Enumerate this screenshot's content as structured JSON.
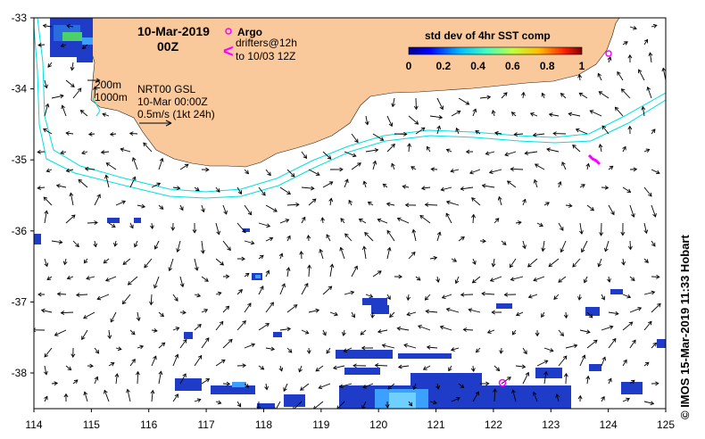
{
  "map": {
    "title_date": "10-Mar-2019",
    "title_time": "00Z",
    "legend_argo": "Argo",
    "legend_drifters_line1": "drifters@12h",
    "legend_drifters_line2": "to 10/03 12Z",
    "drifter_symbol": "<",
    "depth_label_1": "200m",
    "depth_label_2": "1000m",
    "product_line1": "NRT00 GSL",
    "product_line2": "10-Mar 00:00Z",
    "product_line3": "0.5m/s (1kt 24h)",
    "colorbar_title": "std dev of 4hr SST comp",
    "colorbar_ticks": [
      "0",
      "0.2",
      "0.4",
      "0.6",
      "0.8",
      "1"
    ],
    "credit": "© IMOS 15-Mar-2019 11:33 Hobart",
    "x_ticks": [
      "114",
      "115",
      "116",
      "117",
      "118",
      "119",
      "120",
      "121",
      "122",
      "123",
      "124",
      "125"
    ],
    "y_ticks": [
      "-33",
      "-34",
      "-35",
      "-36",
      "-37",
      "-38"
    ],
    "colors": {
      "land": "#f9c89b",
      "isobath": "#00e0e0",
      "argo": "#ff00ff",
      "coverage_low": "#1e3cc8",
      "coverage_mid": "#3ca0ff"
    },
    "icons": [
      "argo-float-icon",
      "drifter-track-icon",
      "current-arrow-icon"
    ]
  }
}
